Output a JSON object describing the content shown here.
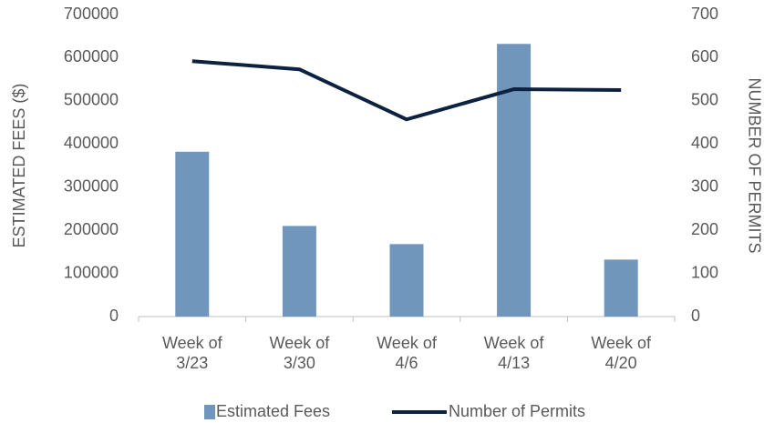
{
  "chart_data": {
    "type": "bar-line",
    "categories": [
      "Week of 3/23",
      "Week of 3/30",
      "Week of 4/6",
      "Week of 4/13",
      "Week of 4/20"
    ],
    "series": [
      {
        "name": "Estimated Fees",
        "color": "#7096bc",
        "type": "bar",
        "axis": "y",
        "values": [
          382000,
          210000,
          168000,
          632000,
          132000
        ]
      },
      {
        "name": "Number of Permits",
        "color": "#0d2240",
        "type": "line",
        "axis": "y2",
        "values": [
          592,
          573,
          457,
          527,
          525
        ]
      }
    ],
    "ylabel": "ESTIMATED FEES ($)",
    "y2label": "NUMBER OF PERMITS",
    "ylim": [
      0,
      700000
    ],
    "yticks": [
      0,
      100000,
      200000,
      300000,
      400000,
      500000,
      600000,
      700000
    ],
    "y2lim": [
      0,
      700
    ],
    "y2ticks": [
      0,
      100,
      200,
      300,
      400,
      500,
      600,
      700
    ],
    "legend": "bottom"
  }
}
